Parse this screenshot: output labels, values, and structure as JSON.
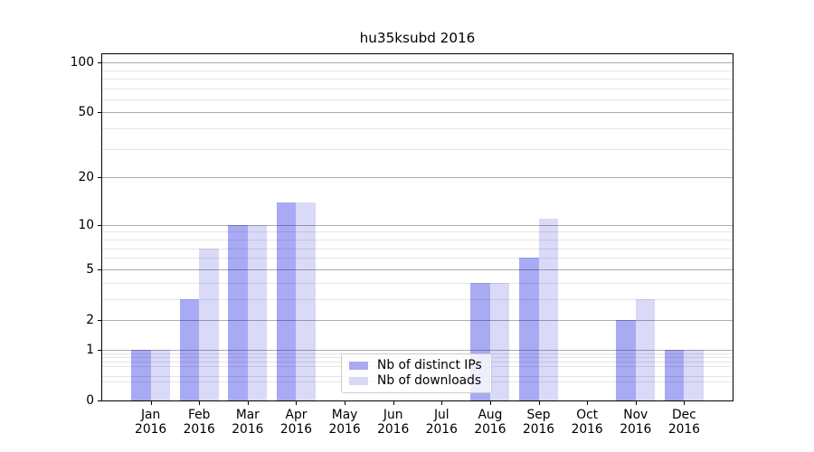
{
  "chart_data": {
    "type": "bar",
    "title": "hu35ksubd 2016",
    "x_labels": [
      [
        "Jan",
        "2016"
      ],
      [
        "Feb",
        "2016"
      ],
      [
        "Mar",
        "2016"
      ],
      [
        "Apr",
        "2016"
      ],
      [
        "May",
        "2016"
      ],
      [
        "Jun",
        "2016"
      ],
      [
        "Jul",
        "2016"
      ],
      [
        "Aug",
        "2016"
      ],
      [
        "Sep",
        "2016"
      ],
      [
        "Oct",
        "2016"
      ],
      [
        "Nov",
        "2016"
      ],
      [
        "Dec",
        "2016"
      ]
    ],
    "series": [
      {
        "name": "Nb of distinct IPs",
        "color": "#a9aaf4",
        "values": [
          1,
          3,
          10,
          14,
          0,
          0,
          0,
          4,
          6,
          0,
          2,
          1
        ]
      },
      {
        "name": "Nb of downloads",
        "color": "#d9daf8",
        "values": [
          1,
          7,
          10,
          14,
          0,
          0,
          0,
          4,
          11,
          0,
          3,
          1
        ]
      }
    ],
    "y_axis": {
      "scale": "log1p",
      "ticks": [
        0,
        1,
        2,
        5,
        10,
        20,
        50,
        100
      ],
      "minor_ticks": [
        0.3,
        0.4,
        0.6,
        0.7,
        0.8,
        0.9,
        3,
        4,
        6,
        7,
        8,
        9,
        30,
        40,
        60,
        70,
        80,
        90
      ],
      "range": [
        0,
        112
      ]
    },
    "grid": true,
    "legend_position": "lower-center"
  }
}
